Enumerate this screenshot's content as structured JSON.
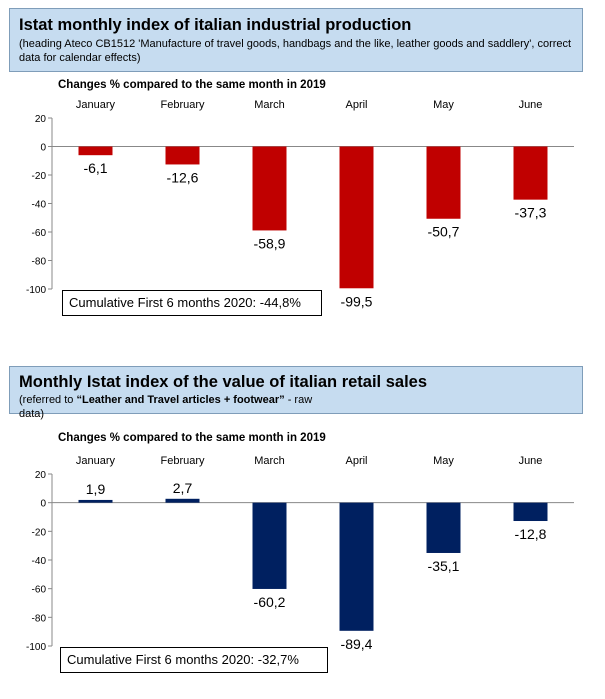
{
  "panels": [
    {
      "title": "Istat monthly index of italian industrial production",
      "subtitle_plain": "(heading Ateco CB1512 'Manufacture of travel goods, handbags and the like, leather goods and saddlery', correct data for calendar effects)",
      "chart_subtitle": "Changes % compared to the same month in 2019",
      "cumulative": "Cumulative First 6 months 2020: -44,8%",
      "colors": {
        "bar": "#c00000"
      }
    },
    {
      "title": "Monthly Istat index of the value of italian retail sales",
      "subtitle_prefix": "(referred to ",
      "subtitle_bold": "“Leather and Travel articles  + footwear”",
      "subtitle_suffix": " - raw data)",
      "chart_subtitle": "Changes  % compared to the same month in 2019",
      "cumulative": "Cumulative First 6 months 2020: -32,7%",
      "colors": {
        "bar": "#002060"
      }
    }
  ],
  "chart_data": [
    {
      "type": "bar",
      "categories": [
        "January",
        "February",
        "March",
        "April",
        "May",
        "June"
      ],
      "values": [
        -6.1,
        -12.6,
        -58.9,
        -99.5,
        -50.7,
        -37.3
      ],
      "labels": [
        "-6,1",
        "-12,6",
        "-58,9",
        "-99,5",
        "-50,7",
        "-37,3"
      ],
      "title": "Istat monthly index of italian industrial production",
      "ylabel": "",
      "ylim": [
        -100,
        20
      ],
      "yticks": [
        "20",
        "0",
        "-20",
        "-40",
        "-60",
        "-80",
        "-100"
      ],
      "yticks_values": [
        20,
        0,
        -20,
        -40,
        -60,
        -80,
        -100
      ],
      "grid": false
    },
    {
      "type": "bar",
      "categories": [
        "January",
        "February",
        "March",
        "April",
        "May",
        "June"
      ],
      "values": [
        1.9,
        2.7,
        -60.2,
        -89.4,
        -35.1,
        -12.8
      ],
      "labels": [
        "1,9",
        "2,7",
        "-60,2",
        "-89,4",
        "-35,1",
        "-12,8"
      ],
      "title": "Monthly Istat index of the value of italian retail sales",
      "ylabel": "",
      "ylim": [
        -100,
        20
      ],
      "yticks": [
        "20",
        "0",
        "-20",
        "-40",
        "-60",
        "-80",
        "-100"
      ],
      "yticks_values": [
        20,
        0,
        -20,
        -40,
        -60,
        -80,
        -100
      ],
      "grid": false
    }
  ]
}
